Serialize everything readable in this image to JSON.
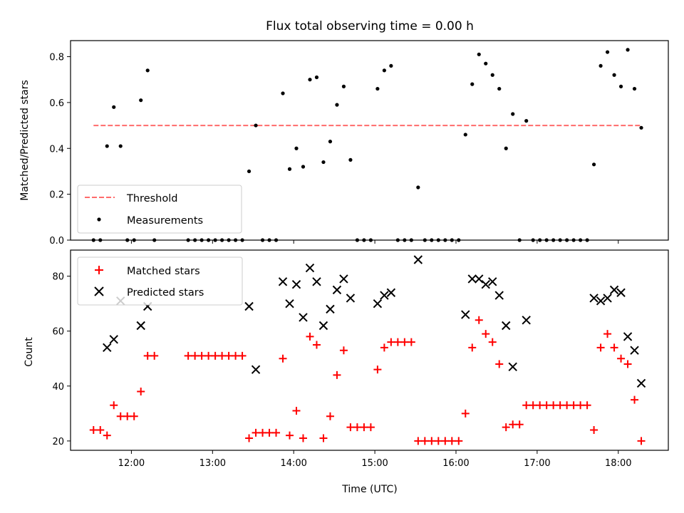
{
  "title": "Flux total observing time = 0.00 h",
  "chart_data": [
    {
      "type": "scatter",
      "panel": "top",
      "ylabel": "Matched/Predicted stars",
      "xlabel": "",
      "xlim": [
        "11:15",
        "18:37"
      ],
      "ylim": [
        0,
        0.87
      ],
      "yticks": [
        0.0,
        0.2,
        0.4,
        0.6,
        0.8
      ],
      "ytick_labels": [
        "0.0",
        "0.2",
        "0.4",
        "0.6",
        "0.8"
      ],
      "threshold": {
        "name": "Threshold",
        "value": 0.5,
        "x_start": "11:32",
        "x_end": "18:17",
        "color": "#ff6b6b"
      },
      "series": [
        {
          "name": "Measurements",
          "color": "#000000",
          "points": [
            [
              "11:32",
              0
            ],
            [
              "11:37",
              0
            ],
            [
              "11:42",
              0.41
            ],
            [
              "11:47",
              0.58
            ],
            [
              "11:52",
              0.41
            ],
            [
              "11:57",
              0
            ],
            [
              "12:02",
              0
            ],
            [
              "12:07",
              0.61
            ],
            [
              "12:12",
              0.74
            ],
            [
              "12:17",
              0
            ],
            [
              "12:42",
              0
            ],
            [
              "12:47",
              0
            ],
            [
              "12:52",
              0
            ],
            [
              "12:57",
              0
            ],
            [
              "13:02",
              0
            ],
            [
              "13:07",
              0
            ],
            [
              "13:12",
              0
            ],
            [
              "13:17",
              0
            ],
            [
              "13:22",
              0
            ],
            [
              "13:27",
              0.3
            ],
            [
              "13:32",
              0.5
            ],
            [
              "13:37",
              0
            ],
            [
              "13:42",
              0
            ],
            [
              "13:47",
              0
            ],
            [
              "13:52",
              0.64
            ],
            [
              "13:57",
              0.31
            ],
            [
              "14:02",
              0.4
            ],
            [
              "14:07",
              0.32
            ],
            [
              "14:12",
              0.7
            ],
            [
              "14:17",
              0.71
            ],
            [
              "14:22",
              0.34
            ],
            [
              "14:27",
              0.43
            ],
            [
              "14:32",
              0.59
            ],
            [
              "14:37",
              0.67
            ],
            [
              "14:42",
              0.35
            ],
            [
              "14:47",
              0
            ],
            [
              "14:52",
              0
            ],
            [
              "14:57",
              0
            ],
            [
              "15:02",
              0.66
            ],
            [
              "15:07",
              0.74
            ],
            [
              "15:12",
              0.76
            ],
            [
              "15:17",
              0
            ],
            [
              "15:22",
              0
            ],
            [
              "15:27",
              0
            ],
            [
              "15:32",
              0.23
            ],
            [
              "15:37",
              0
            ],
            [
              "15:42",
              0
            ],
            [
              "15:47",
              0
            ],
            [
              "15:52",
              0
            ],
            [
              "15:57",
              0
            ],
            [
              "16:02",
              0
            ],
            [
              "16:07",
              0.46
            ],
            [
              "16:12",
              0.68
            ],
            [
              "16:17",
              0.81
            ],
            [
              "16:22",
              0.77
            ],
            [
              "16:27",
              0.72
            ],
            [
              "16:32",
              0.66
            ],
            [
              "16:37",
              0.4
            ],
            [
              "16:42",
              0.55
            ],
            [
              "16:47",
              0
            ],
            [
              "16:52",
              0.52
            ],
            [
              "16:57",
              0
            ],
            [
              "17:02",
              0
            ],
            [
              "17:07",
              0
            ],
            [
              "17:12",
              0
            ],
            [
              "17:17",
              0
            ],
            [
              "17:22",
              0
            ],
            [
              "17:27",
              0
            ],
            [
              "17:32",
              0
            ],
            [
              "17:37",
              0
            ],
            [
              "17:42",
              0.33
            ],
            [
              "17:47",
              0.76
            ],
            [
              "17:52",
              0.82
            ],
            [
              "17:57",
              0.72
            ],
            [
              "18:02",
              0.67
            ],
            [
              "18:07",
              0.83
            ],
            [
              "18:12",
              0.66
            ],
            [
              "18:17",
              0.49
            ]
          ]
        }
      ],
      "legend": {
        "placement": "lower left",
        "entries": [
          "Threshold",
          "Measurements"
        ]
      }
    },
    {
      "type": "scatter",
      "panel": "bottom",
      "ylabel": "Count",
      "xlabel": "Time (UTC)",
      "xlim": [
        "11:15",
        "18:37"
      ],
      "ylim": [
        16.6,
        89.5
      ],
      "yticks": [
        20,
        40,
        60,
        80
      ],
      "ytick_labels": [
        "20",
        "40",
        "60",
        "80"
      ],
      "xticks": [
        "12:00",
        "13:00",
        "14:00",
        "15:00",
        "16:00",
        "17:00",
        "18:00"
      ],
      "series": [
        {
          "name": "Matched stars",
          "marker": "plus",
          "color": "#ff0000",
          "points": [
            [
              "11:32",
              24
            ],
            [
              "11:37",
              24
            ],
            [
              "11:42",
              22
            ],
            [
              "11:47",
              33
            ],
            [
              "11:52",
              29
            ],
            [
              "11:57",
              29
            ],
            [
              "12:02",
              29
            ],
            [
              "12:07",
              38
            ],
            [
              "12:12",
              51
            ],
            [
              "12:17",
              51
            ],
            [
              "12:42",
              51
            ],
            [
              "12:47",
              51
            ],
            [
              "12:52",
              51
            ],
            [
              "12:57",
              51
            ],
            [
              "13:02",
              51
            ],
            [
              "13:07",
              51
            ],
            [
              "13:12",
              51
            ],
            [
              "13:17",
              51
            ],
            [
              "13:22",
              51
            ],
            [
              "13:27",
              21
            ],
            [
              "13:32",
              23
            ],
            [
              "13:37",
              23
            ],
            [
              "13:42",
              23
            ],
            [
              "13:47",
              23
            ],
            [
              "13:52",
              50
            ],
            [
              "13:57",
              22
            ],
            [
              "14:02",
              31
            ],
            [
              "14:07",
              21
            ],
            [
              "14:12",
              58
            ],
            [
              "14:17",
              55
            ],
            [
              "14:22",
              21
            ],
            [
              "14:27",
              29
            ],
            [
              "14:32",
              44
            ],
            [
              "14:37",
              53
            ],
            [
              "14:42",
              25
            ],
            [
              "14:47",
              25
            ],
            [
              "14:52",
              25
            ],
            [
              "14:57",
              25
            ],
            [
              "15:02",
              46
            ],
            [
              "15:07",
              54
            ],
            [
              "15:12",
              56
            ],
            [
              "15:17",
              56
            ],
            [
              "15:22",
              56
            ],
            [
              "15:27",
              56
            ],
            [
              "15:32",
              20
            ],
            [
              "15:37",
              20
            ],
            [
              "15:42",
              20
            ],
            [
              "15:47",
              20
            ],
            [
              "15:52",
              20
            ],
            [
              "15:57",
              20
            ],
            [
              "16:02",
              20
            ],
            [
              "16:07",
              30
            ],
            [
              "16:12",
              54
            ],
            [
              "16:17",
              64
            ],
            [
              "16:22",
              59
            ],
            [
              "16:27",
              56
            ],
            [
              "16:32",
              48
            ],
            [
              "16:37",
              25
            ],
            [
              "16:42",
              26
            ],
            [
              "16:47",
              26
            ],
            [
              "16:52",
              33
            ],
            [
              "16:57",
              33
            ],
            [
              "17:02",
              33
            ],
            [
              "17:07",
              33
            ],
            [
              "17:12",
              33
            ],
            [
              "17:17",
              33
            ],
            [
              "17:22",
              33
            ],
            [
              "17:27",
              33
            ],
            [
              "17:32",
              33
            ],
            [
              "17:37",
              33
            ],
            [
              "17:42",
              24
            ],
            [
              "17:47",
              54
            ],
            [
              "17:52",
              59
            ],
            [
              "17:57",
              54
            ],
            [
              "18:02",
              50
            ],
            [
              "18:07",
              48
            ],
            [
              "18:12",
              35
            ],
            [
              "18:17",
              20
            ]
          ]
        },
        {
          "name": "Predicted stars",
          "marker": "x",
          "color": "#000000",
          "points": [
            [
              "11:42",
              54
            ],
            [
              "11:47",
              57
            ],
            [
              "11:52",
              71
            ],
            [
              "12:07",
              62
            ],
            [
              "12:12",
              69
            ],
            [
              "13:27",
              69
            ],
            [
              "13:32",
              46
            ],
            [
              "13:52",
              78
            ],
            [
              "13:57",
              70
            ],
            [
              "14:02",
              77
            ],
            [
              "14:07",
              65
            ],
            [
              "14:12",
              83
            ],
            [
              "14:17",
              78
            ],
            [
              "14:22",
              62
            ],
            [
              "14:27",
              68
            ],
            [
              "14:32",
              75
            ],
            [
              "14:37",
              79
            ],
            [
              "14:42",
              72
            ],
            [
              "15:02",
              70
            ],
            [
              "15:07",
              73
            ],
            [
              "15:12",
              74
            ],
            [
              "15:32",
              86
            ],
            [
              "16:07",
              66
            ],
            [
              "16:12",
              79
            ],
            [
              "16:17",
              79
            ],
            [
              "16:22",
              77
            ],
            [
              "16:27",
              78
            ],
            [
              "16:32",
              73
            ],
            [
              "16:37",
              62
            ],
            [
              "16:42",
              47
            ],
            [
              "16:52",
              64
            ],
            [
              "17:42",
              72
            ],
            [
              "17:47",
              71
            ],
            [
              "17:52",
              72
            ],
            [
              "17:57",
              75
            ],
            [
              "18:02",
              74
            ],
            [
              "18:07",
              58
            ],
            [
              "18:12",
              53
            ],
            [
              "18:17",
              41
            ]
          ]
        }
      ],
      "legend": {
        "placement": "upper left",
        "entries": [
          "Matched stars",
          "Predicted stars"
        ]
      }
    }
  ]
}
